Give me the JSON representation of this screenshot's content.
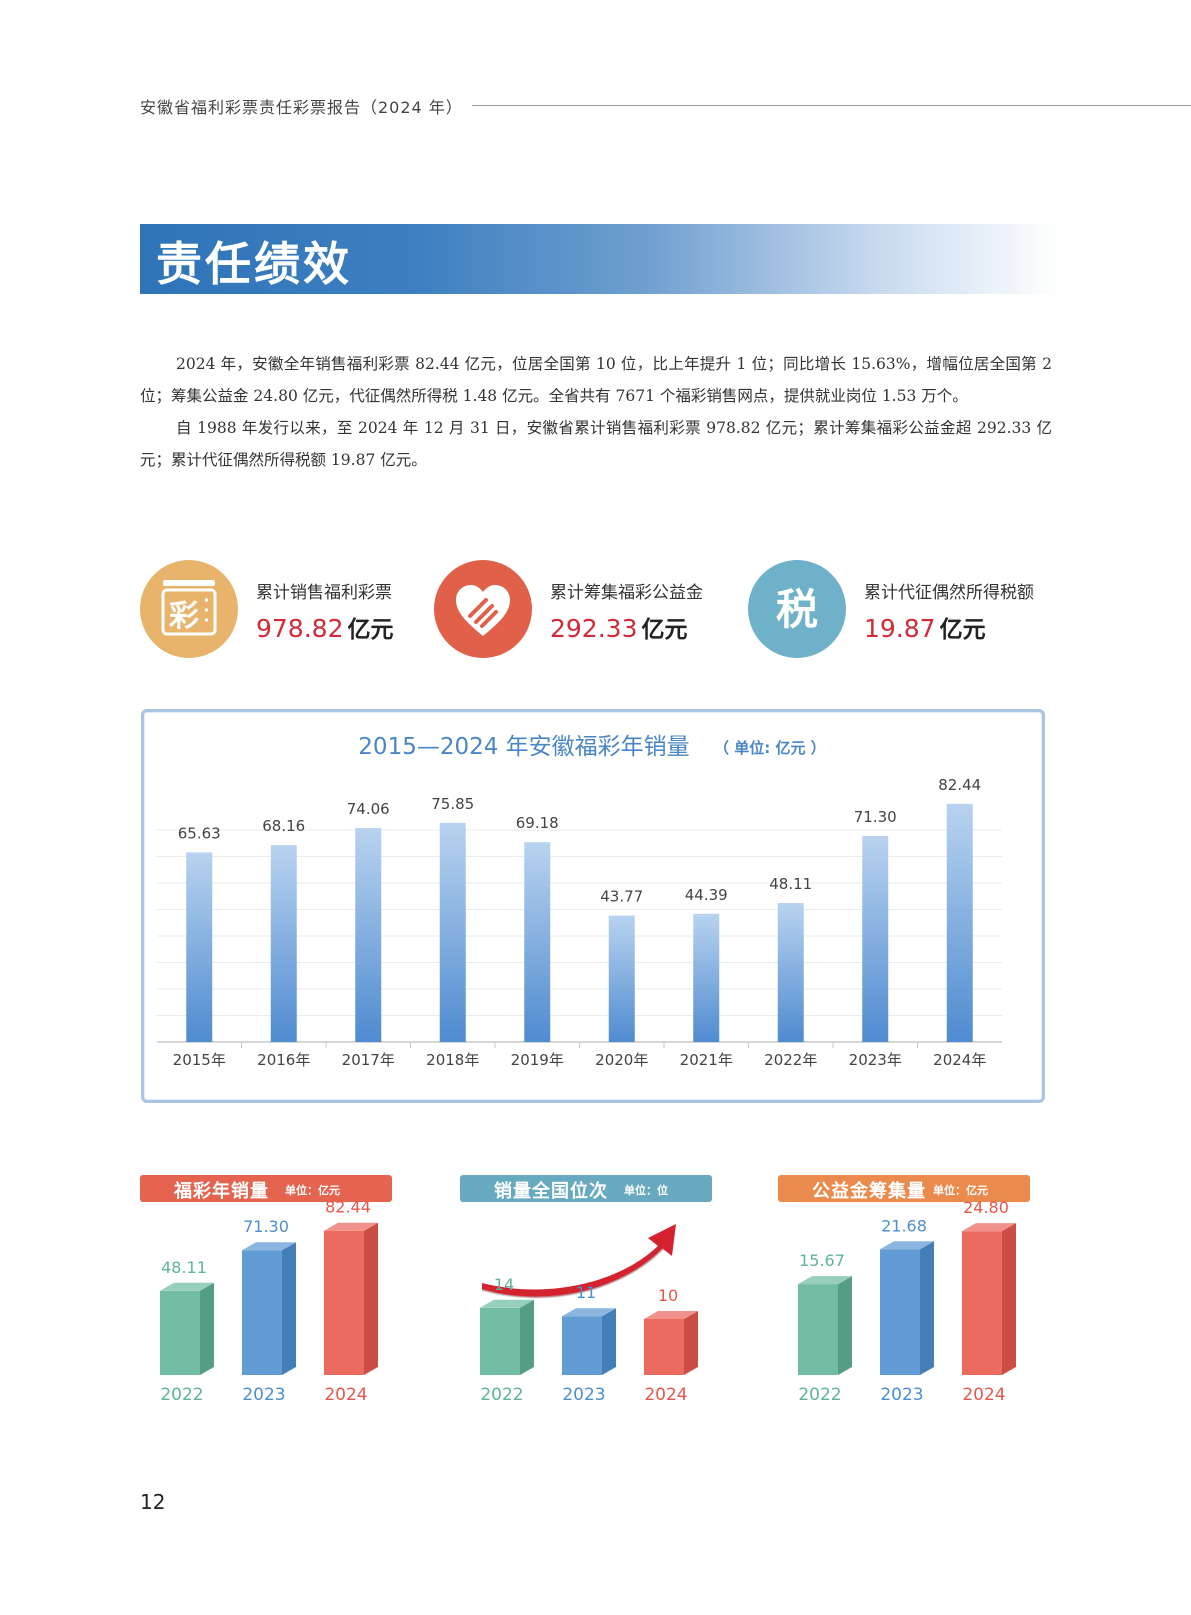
{
  "header": {
    "title": "安徽省福利彩票责任彩票报告（2024 年）"
  },
  "section": {
    "title": "责任绩效"
  },
  "intro": {
    "p1": "2024 年，安徽全年销售福利彩票 82.44 亿元，位居全国第 10 位，比上年提升 1 位；同比增长 15.63%，增幅位居全国第 2 位；筹集公益金 24.80 亿元，代征偶然所得税 1.48 亿元。全省共有 7671 个福彩销售网点，提供就业岗位 1.53 万个。",
    "p2": "自 1988 年发行以来，至 2024 年 12 月 31 日，安徽省累计销售福利彩票 978.82 亿元；累计筹集福彩公益金超 292.33 亿元；累计代征偶然所得税额 19.87 亿元。"
  },
  "stats": [
    {
      "label": "累计销售福利彩票",
      "value": "978.82",
      "unit": "亿元",
      "icon": "lottery-icon",
      "icon_char": "彩",
      "color": "#e8b36a"
    },
    {
      "label": "累计筹集福彩公益金",
      "value": "292.33",
      "unit": "亿元",
      "icon": "heart-hands-icon",
      "color": "#e0604a"
    },
    {
      "label": "累计代征偶然所得税额",
      "value": "19.87",
      "unit": "亿元",
      "icon": "tax-icon",
      "icon_char": "税",
      "color": "#6eb1c8"
    }
  ],
  "chart_data": [
    {
      "type": "bar",
      "title": "2015—2024 年安徽福彩年销量",
      "unit_note": "（ 单位: 亿元 ）",
      "categories": [
        "2015年",
        "2016年",
        "2017年",
        "2018年",
        "2019年",
        "2020年",
        "2021年",
        "2022年",
        "2023年",
        "2024年"
      ],
      "values": [
        65.63,
        68.16,
        74.06,
        75.85,
        69.18,
        43.77,
        44.39,
        48.11,
        71.3,
        82.44
      ],
      "value_labels": [
        "65.63",
        "68.16",
        "74.06",
        "75.85",
        "69.18",
        "43.77",
        "44.39",
        "48.11",
        "71.30",
        "82.44"
      ],
      "ylim": [
        0,
        90
      ],
      "grid": true,
      "color": "#5b95d6"
    },
    {
      "type": "bar",
      "title": "福彩年销量",
      "unit_note": "单位：亿元",
      "categories": [
        "2022",
        "2023",
        "2024"
      ],
      "values": [
        48.11,
        71.3,
        82.44
      ],
      "value_labels": [
        "48.11",
        "71.30",
        "82.44"
      ],
      "ylim": [
        0,
        90
      ],
      "header_color": "#e4644f"
    },
    {
      "type": "bar",
      "title": "销量全国位次",
      "unit_note": "单位：位",
      "categories": [
        "2022",
        "2023",
        "2024"
      ],
      "values": [
        14,
        11,
        10
      ],
      "value_labels": [
        "14",
        "11",
        "10"
      ],
      "header_color": "#67aac0"
    },
    {
      "type": "bar",
      "title": "公益金筹集量",
      "unit_note": "单位：亿元",
      "categories": [
        "2022",
        "2023",
        "2024"
      ],
      "values": [
        15.67,
        21.68,
        24.8
      ],
      "value_labels": [
        "15.67",
        "21.68",
        "24.80"
      ],
      "ylim": [
        0,
        27
      ],
      "header_color": "#ea8a4c"
    }
  ],
  "colors": {
    "y2022": "#5fb398",
    "y2023": "#4c8fcf",
    "y2024": "#e8574c",
    "red": "#d32a3a",
    "arrow": "#d4232e"
  },
  "page": {
    "number": "12"
  }
}
